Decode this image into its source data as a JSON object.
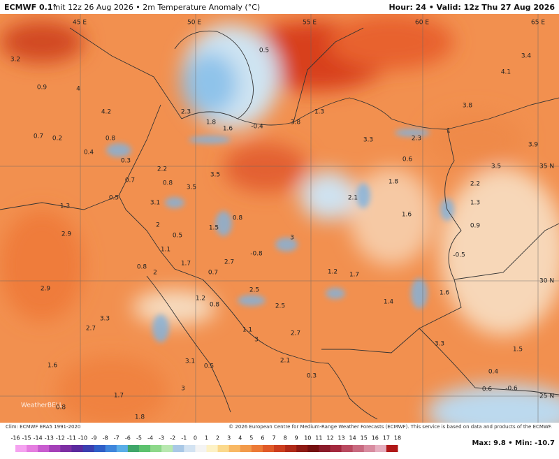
{
  "header": {
    "model": "ECMWF 0.1°",
    "info": "Init 12z 26 Aug 2026 • 2m Temperature Anomaly (°C)",
    "valid": "Hour: 24 • Valid: 12z Thu 27 Aug 2026"
  },
  "map": {
    "coordinate_labels": [
      "45 E",
      "50 E",
      "55 E",
      "60 E",
      "65 E",
      "35 N",
      "30 N",
      "25 N"
    ],
    "values": [
      3.2,
      0.9,
      4.0,
      4.2,
      0.7,
      0.2,
      0.8,
      0.4,
      0.3,
      2.2,
      0.7,
      0.8,
      3.5,
      3.5,
      0.5,
      3.1,
      1.3,
      2.0,
      1.5,
      0.8,
      2.9,
      0.5,
      1.1,
      3.0,
      -0.8,
      1.7,
      2.7,
      0.7,
      0.8,
      2.0,
      1.2,
      1.7,
      2.9,
      2.5,
      1.2,
      0.8,
      1.4,
      2.5,
      3.3,
      2.7,
      1.1,
      2.7,
      3.0,
      3.3,
      1.5,
      3.1,
      0.5,
      2.1,
      1.6,
      0.4,
      0.3,
      3.0,
      1.7,
      0.8,
      1.8,
      1.3,
      3.8,
      2.3,
      1.8,
      1.6,
      -0.4,
      3.3,
      2.3,
      1.0,
      0.6,
      3.8,
      3.9,
      3.5,
      1.8,
      2.2,
      2.1,
      1.3,
      1.6,
      0.9,
      -0.5,
      1.6,
      4.1,
      3.4,
      0.5,
      0.6,
      -0.6
    ],
    "logo": "WeatherBELL"
  },
  "footer": {
    "climatology": "Clim: ECMWF ERA5 1991-2020",
    "credit": "© 2026 European Centre for Medium-Range Weather Forecasts (ECMWF). This service is based on data and products of the ECMWF.",
    "extremes": "Max: 9.8 • Min: -10.7"
  },
  "colorbar": {
    "ticks": [
      -16,
      -15,
      -14,
      -13,
      -12,
      -11,
      -10,
      -9,
      -8,
      -7,
      -6,
      -5,
      -4,
      -3,
      -2,
      -1,
      0,
      1,
      2,
      3,
      4,
      5,
      6,
      7,
      8,
      9,
      10,
      11,
      12,
      13,
      14,
      15,
      16,
      17,
      18
    ],
    "colors": [
      "#f5a3f0",
      "#e57ee0",
      "#c85ccf",
      "#a440b8",
      "#7d2fa3",
      "#5a2a9e",
      "#3b3fb0",
      "#2f5fc8",
      "#3f86dc",
      "#5aaee8",
      "#3fa66a",
      "#5cc26e",
      "#8dd88a",
      "#b8e8b0",
      "#a9c8e6",
      "#d3e3f2",
      "#f4f4f4",
      "#fdf2c6",
      "#fbd98c",
      "#f8b864",
      "#f29a4a",
      "#ec7a36",
      "#e05a28",
      "#cc3e1e",
      "#b02a18",
      "#8e1a14",
      "#741010",
      "#8a1b2a",
      "#a3283e",
      "#b94a60",
      "#c86a80",
      "#d88ca0",
      "#e6afc0",
      "#b01818"
    ]
  }
}
